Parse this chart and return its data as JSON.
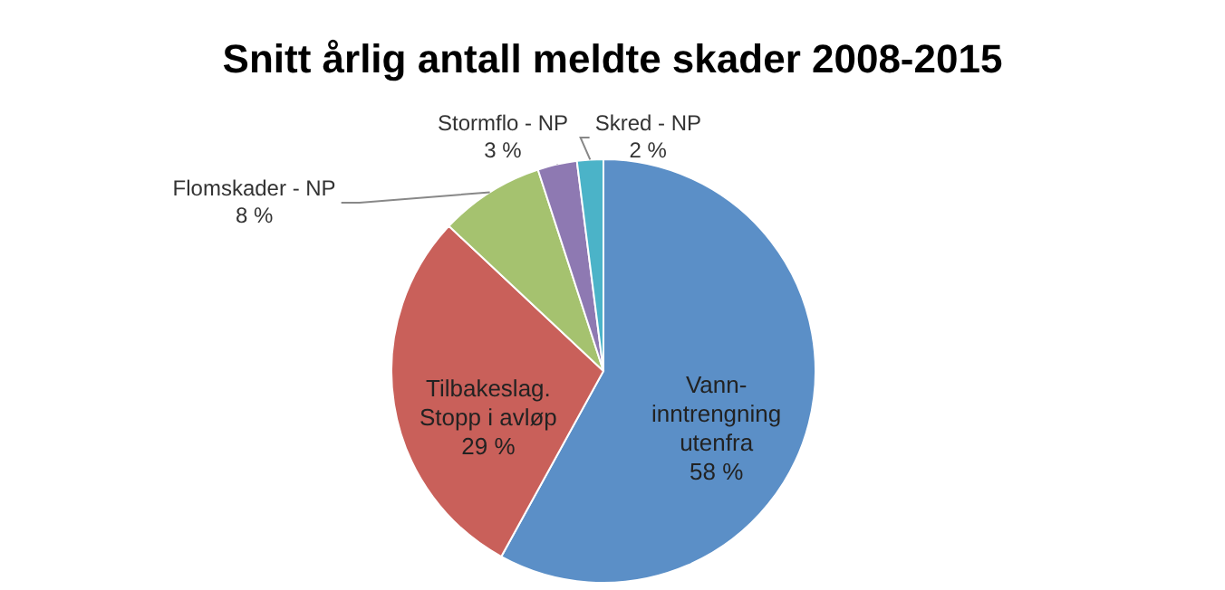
{
  "chart_data": {
    "type": "pie",
    "title": "Snitt årlig antall meldte skader 2008-2015",
    "categories": [
      "Vann-\ninntrengning\nutenfra",
      "Tilbakeslag.\nStopp i avløp",
      "Flomskader - NP",
      "Stormflo - NP",
      "Skred - NP"
    ],
    "values": [
      58,
      29,
      8,
      3,
      2
    ],
    "value_labels": [
      "58 %",
      "29 %",
      "8 %",
      "3 %",
      "2 %"
    ],
    "colors": [
      "#5b8fc7",
      "#c9605a",
      "#a5c26f",
      "#8e79b2",
      "#4bb3c8"
    ],
    "legend": false
  }
}
